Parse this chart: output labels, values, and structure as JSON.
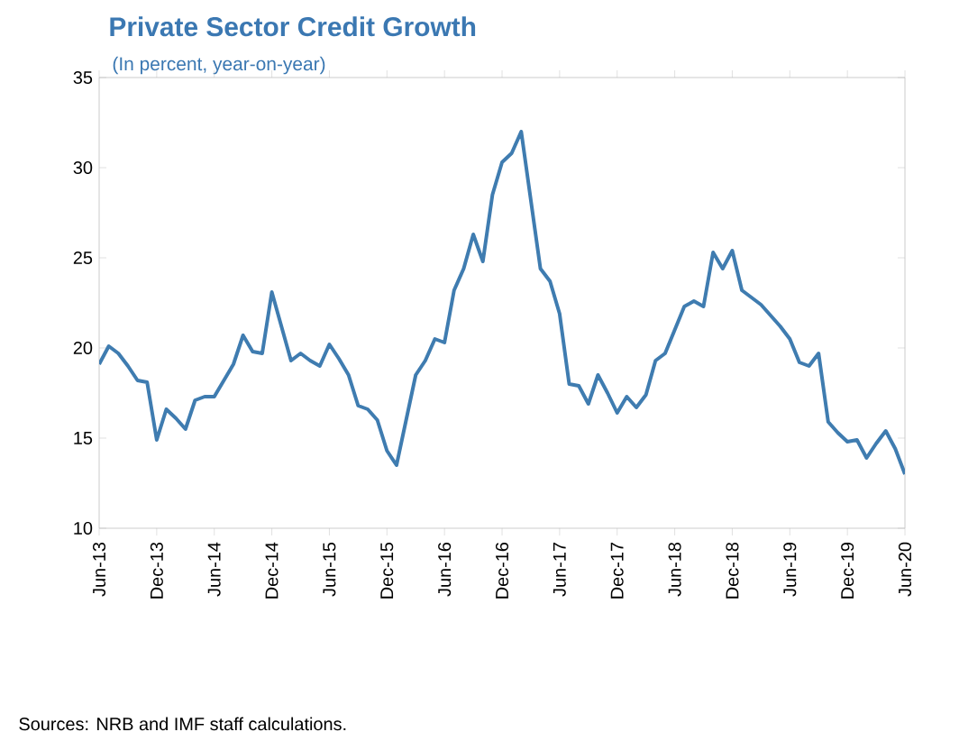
{
  "chart_data": {
    "type": "line",
    "title": "Private Sector Credit Growth",
    "subtitle": "(In percent, year-on-year)",
    "annotations": [
      "Sources: NRB and IMF staff calculations."
    ],
    "x": [
      "2013-06",
      "2013-07",
      "2013-08",
      "2013-09",
      "2013-10",
      "2013-11",
      "2013-12",
      "2014-01",
      "2014-02",
      "2014-03",
      "2014-04",
      "2014-05",
      "2014-06",
      "2014-07",
      "2014-08",
      "2014-09",
      "2014-10",
      "2014-11",
      "2014-12",
      "2015-01",
      "2015-02",
      "2015-03",
      "2015-04",
      "2015-05",
      "2015-06",
      "2015-07",
      "2015-08",
      "2015-09",
      "2015-10",
      "2015-11",
      "2015-12",
      "2016-01",
      "2016-02",
      "2016-03",
      "2016-04",
      "2016-05",
      "2016-06",
      "2016-07",
      "2016-08",
      "2016-09",
      "2016-10",
      "2016-11",
      "2016-12",
      "2017-01",
      "2017-02",
      "2017-03",
      "2017-04",
      "2017-05",
      "2017-06",
      "2017-07",
      "2017-08",
      "2017-09",
      "2017-10",
      "2017-11",
      "2017-12",
      "2018-01",
      "2018-02",
      "2018-03",
      "2018-04",
      "2018-05",
      "2018-06",
      "2018-07",
      "2018-08",
      "2018-09",
      "2018-10",
      "2018-11",
      "2018-12",
      "2019-01",
      "2019-02",
      "2019-03",
      "2019-04",
      "2019-05",
      "2019-06",
      "2019-07",
      "2019-08",
      "2019-09",
      "2019-10",
      "2019-11",
      "2019-12",
      "2020-01",
      "2020-02",
      "2020-03",
      "2020-04",
      "2020-05",
      "2020-06"
    ],
    "series": [
      {
        "color": "#3f7cb0",
        "values": [
          19.1,
          20.1,
          19.7,
          19.0,
          18.2,
          18.1,
          14.9,
          16.6,
          16.1,
          15.5,
          17.1,
          17.3,
          17.3,
          18.2,
          19.1,
          20.7,
          19.8,
          19.7,
          23.1,
          21.2,
          19.3,
          19.7,
          19.3,
          19.0,
          20.2,
          19.4,
          18.5,
          16.8,
          16.6,
          16.0,
          14.3,
          13.5,
          16.0,
          18.5,
          19.3,
          20.5,
          20.3,
          23.2,
          24.4,
          26.3,
          24.8,
          28.5,
          30.3,
          30.8,
          32.0,
          28.2,
          24.4,
          23.7,
          21.9,
          18.0,
          17.9,
          16.9,
          18.5,
          17.5,
          16.4,
          17.3,
          16.7,
          17.4,
          19.3,
          19.7,
          21.0,
          22.3,
          22.6,
          22.3,
          25.3,
          24.4,
          25.4,
          23.2,
          22.8,
          22.4,
          21.8,
          21.2,
          20.5,
          19.2,
          19.0,
          19.7,
          15.9,
          15.3,
          14.8,
          14.9,
          13.9,
          14.7,
          15.4,
          14.4,
          13.0
        ]
      }
    ],
    "xlim": [
      "2013-06",
      "2020-06"
    ],
    "ylim": [
      10,
      35
    ],
    "yticks": [
      10,
      15,
      20,
      25,
      30,
      35
    ],
    "xticks": [
      {
        "value": "2013-06",
        "label": "Jun-13"
      },
      {
        "value": "2013-12",
        "label": "Dec-13"
      },
      {
        "value": "2014-06",
        "label": "Jun-14"
      },
      {
        "value": "2014-12",
        "label": "Dec-14"
      },
      {
        "value": "2015-06",
        "label": "Jun-15"
      },
      {
        "value": "2015-12",
        "label": "Dec-15"
      },
      {
        "value": "2016-06",
        "label": "Jun-16"
      },
      {
        "value": "2016-12",
        "label": "Dec-16"
      },
      {
        "value": "2017-06",
        "label": "Jun-17"
      },
      {
        "value": "2017-12",
        "label": "Dec-17"
      },
      {
        "value": "2018-06",
        "label": "Jun-18"
      },
      {
        "value": "2018-12",
        "label": "Dec-18"
      },
      {
        "value": "2019-06",
        "label": "Jun-19"
      },
      {
        "value": "2019-12",
        "label": "Dec-19"
      },
      {
        "value": "2020-06",
        "label": "Jun-20"
      }
    ],
    "grid": false,
    "marker": "none",
    "line_style": "solid"
  }
}
